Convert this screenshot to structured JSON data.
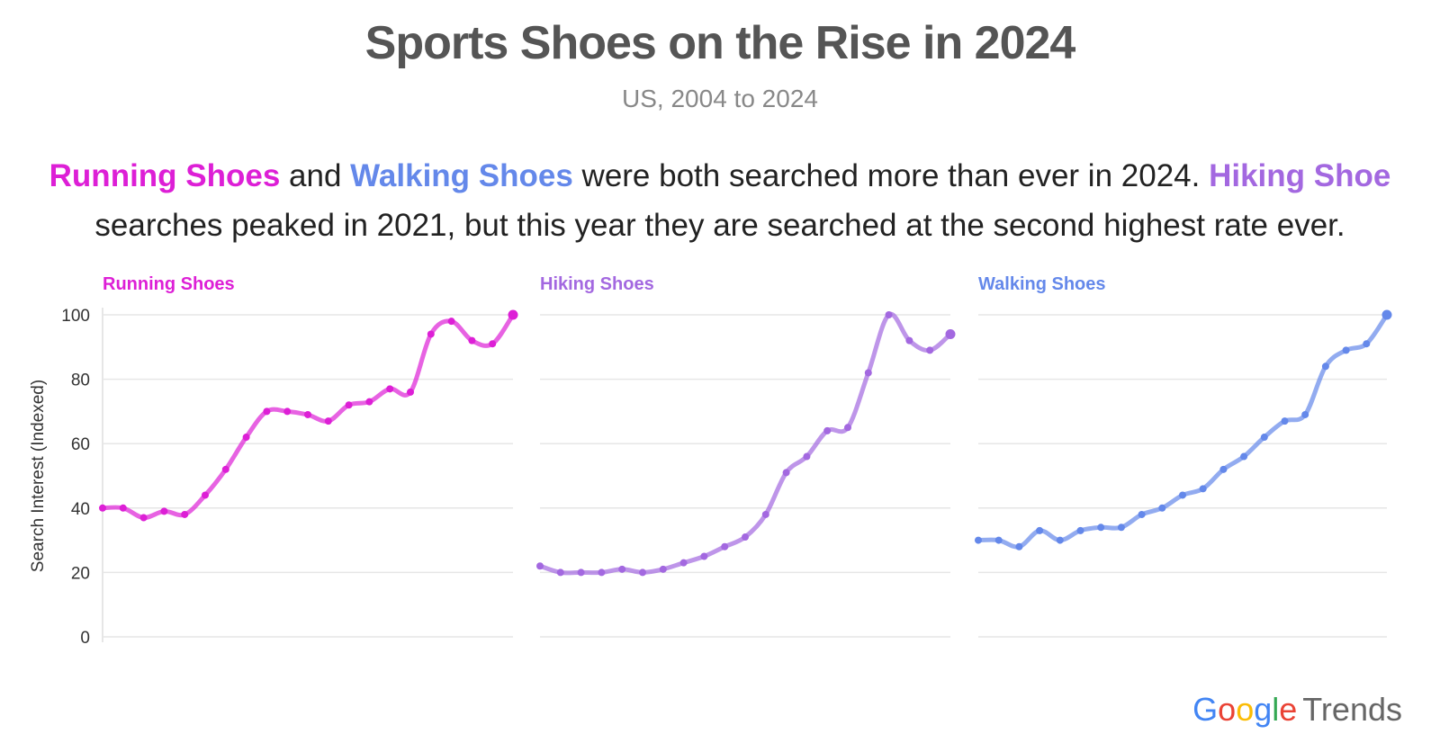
{
  "title": "Sports Shoes on the Rise in 2024",
  "subtitle": "US, 2004 to 2024",
  "description": {
    "running": "Running Shoes",
    "and": " and ",
    "walking": "Walking Shoes",
    "mid": " were both searched more than ever in 2024. ",
    "hiking": "Hiking Shoe",
    "end": " searches peaked in 2021, but this year they are searched at the second highest rate ever."
  },
  "logo": {
    "google": [
      "G",
      "o",
      "o",
      "g",
      "l",
      "e"
    ],
    "google_colors": [
      "#4285F4",
      "#EA4335",
      "#FBBC05",
      "#4285F4",
      "#34A853",
      "#EA4335"
    ],
    "trends": "Trends"
  },
  "colors": {
    "running": "#dd1fd6",
    "hiking": "#a368e0",
    "walking": "#6488ea",
    "grid": "#e6e6e6",
    "axis_text": "#333333"
  },
  "chart_data": {
    "type": "line",
    "ylabel": "Search Interest (Indexed)",
    "ylim": [
      0,
      100
    ],
    "yticks": [
      0,
      20,
      40,
      60,
      80,
      100
    ],
    "xlim": [
      2004,
      2024
    ],
    "x": [
      2004,
      2005,
      2006,
      2007,
      2008,
      2009,
      2010,
      2011,
      2012,
      2013,
      2014,
      2015,
      2016,
      2017,
      2018,
      2019,
      2020,
      2021,
      2022,
      2023,
      2024
    ],
    "series": [
      {
        "name": "Running Shoes",
        "color_key": "running",
        "values": [
          40,
          40,
          37,
          39,
          38,
          44,
          52,
          62,
          70,
          70,
          69,
          67,
          72,
          73,
          77,
          76,
          94,
          98,
          92,
          91,
          100
        ]
      },
      {
        "name": "Hiking Shoes",
        "color_key": "hiking",
        "values": [
          22,
          20,
          20,
          20,
          21,
          20,
          21,
          23,
          25,
          28,
          31,
          38,
          51,
          56,
          64,
          65,
          82,
          100,
          92,
          89,
          94
        ]
      },
      {
        "name": "Walking Shoes",
        "color_key": "walking",
        "values": [
          30,
          30,
          28,
          33,
          30,
          33,
          34,
          34,
          38,
          40,
          44,
          46,
          52,
          56,
          62,
          67,
          69,
          84,
          89,
          91,
          100
        ]
      }
    ]
  }
}
